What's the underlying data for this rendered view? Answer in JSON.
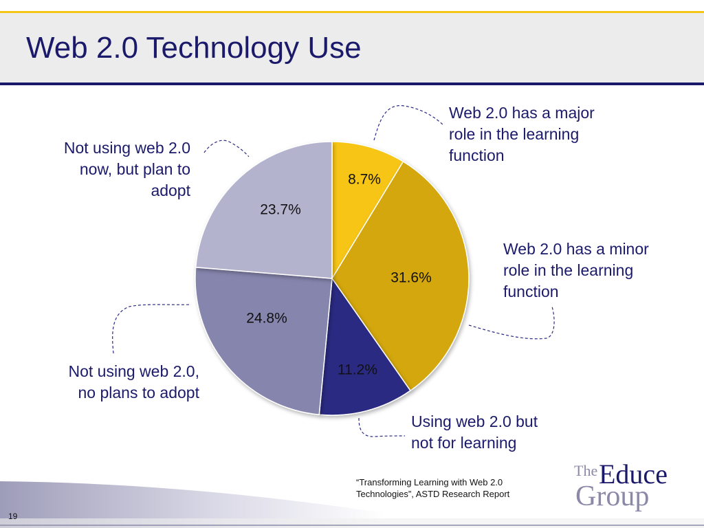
{
  "slide": {
    "title": "Web 2.0 Technology Use",
    "number": "19",
    "source_line1": "“Transforming Learning with Web 2.0",
    "source_line2": "Technologies”, ASTD Research Report"
  },
  "logo": {
    "the": "The",
    "educe": "Educe",
    "group": "Group"
  },
  "chart_data": {
    "type": "pie",
    "title": "",
    "slices": [
      {
        "label": "Web 2.0 has a major role in the learning function",
        "value": 8.7,
        "display": "8.7%",
        "color": "#f7c516"
      },
      {
        "label": "Web 2.0 has a minor role in the learning function",
        "value": 31.6,
        "display": "31.6%",
        "color": "#d3a709"
      },
      {
        "label": "Using web 2.0 but not for learning",
        "value": 11.2,
        "display": "11.2%",
        "color": "#2b2a83"
      },
      {
        "label": "Not using web 2.0, no plans to adopt",
        "value": 24.8,
        "display": "24.8%",
        "color": "#8685ae"
      },
      {
        "label": "Not using web 2.0 now, but plan to adopt",
        "value": 23.7,
        "display": "23.7%",
        "color": "#b4b3ce"
      }
    ]
  },
  "callouts": {
    "major": [
      "Web 2.0 has a major",
      "role in the learning",
      "function"
    ],
    "minor": [
      "Web 2.0 has a minor",
      "role in the learning",
      "function"
    ],
    "using": [
      "Using web 2.0 but",
      "not for learning"
    ],
    "no_plans": [
      "Not using web 2.0,",
      "no plans to adopt"
    ],
    "plan": [
      "Not using web 2.0",
      "now, but plan to",
      "adopt"
    ]
  },
  "colors": {
    "title": "#1b1a6a",
    "accent_rule": "#f5c518",
    "leader_line": "#2b2a83"
  }
}
